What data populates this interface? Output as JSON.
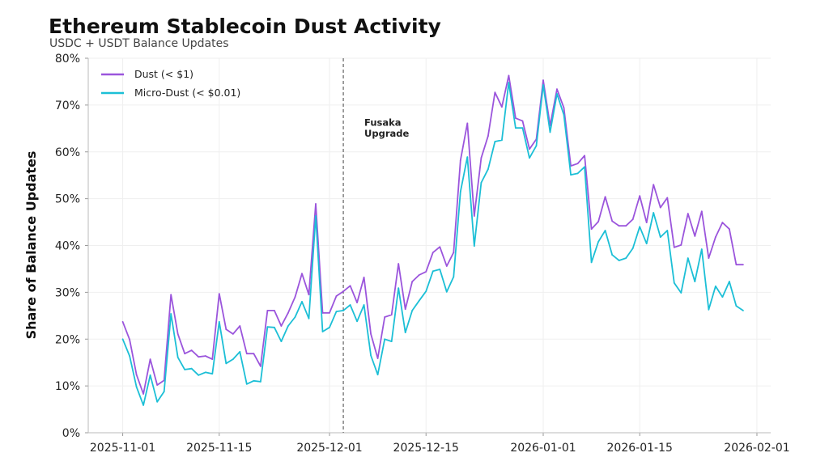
{
  "chart_data": {
    "type": "line",
    "title": "Ethereum Stablecoin Dust Activity",
    "subtitle": "USDC + USDT Balance Updates",
    "xlabel": "",
    "ylabel": "Share of Balance Updates",
    "x_start": "2025-11-01",
    "x_step": "1 day",
    "xlim": [
      "2025-10-27",
      "2026-02-03"
    ],
    "ylim": [
      0,
      80
    ],
    "x_ticks": [
      "2025-11-01",
      "2025-11-15",
      "2025-12-01",
      "2025-12-15",
      "2026-01-01",
      "2026-01-15",
      "2026-02-01"
    ],
    "y_ticks": [
      0,
      10,
      20,
      30,
      40,
      50,
      60,
      70,
      80
    ],
    "y_tick_labels": [
      "0%",
      "10%",
      "20%",
      "30%",
      "40%",
      "50%",
      "60%",
      "70%",
      "80%"
    ],
    "grid": true,
    "legend_position": "top-left",
    "annotation": {
      "date": "2025-12-03",
      "label_line1": "Fusaka",
      "label_line2": "Upgrade",
      "style": "dashed vertical line"
    },
    "series": [
      {
        "name": "Dust (< $1)",
        "color": "#9b55dc",
        "values": [
          23.7,
          19.9,
          12.4,
          8.3,
          15.7,
          10.2,
          11.2,
          29.5,
          21.1,
          16.9,
          17.6,
          16.2,
          16.4,
          15.7,
          29.7,
          22.1,
          21.1,
          22.8,
          16.9,
          16.9,
          14.2,
          26.1,
          26.1,
          22.8,
          25.6,
          29.0,
          34.0,
          29.5,
          48.9,
          25.6,
          25.6,
          29.2,
          30.2,
          31.4,
          27.8,
          33.2,
          21.1,
          15.9,
          24.7,
          25.2,
          36.1,
          26.4,
          32.3,
          33.7,
          34.4,
          38.5,
          39.7,
          35.6,
          38.5,
          58.2,
          66.1,
          46.3,
          58.7,
          63.4,
          72.7,
          69.6,
          76.3,
          67.2,
          66.6,
          60.6,
          62.7,
          75.3,
          65.6,
          73.4,
          69.4,
          57.0,
          57.5,
          59.2,
          43.5,
          45.1,
          50.4,
          45.2,
          44.2,
          44.2,
          45.6,
          50.6,
          44.9,
          53.0,
          48.1,
          50.2,
          39.6,
          40.1,
          46.8,
          42.0,
          47.3,
          37.3,
          41.8,
          44.9,
          43.5,
          35.9,
          35.9
        ]
      },
      {
        "name": "Micro-Dust (< $0.01)",
        "color": "#1cbfd6",
        "values": [
          20.0,
          16.4,
          9.8,
          5.9,
          12.3,
          6.6,
          8.8,
          25.4,
          16.1,
          13.5,
          13.7,
          12.3,
          12.9,
          12.6,
          23.7,
          14.8,
          15.7,
          17.3,
          10.4,
          11.1,
          10.9,
          22.6,
          22.5,
          19.5,
          22.8,
          24.7,
          28.0,
          24.4,
          46.3,
          21.6,
          22.5,
          25.9,
          26.1,
          27.3,
          23.8,
          27.3,
          16.5,
          12.4,
          20.0,
          19.5,
          30.9,
          21.4,
          26.1,
          28.2,
          30.2,
          34.5,
          34.9,
          30.1,
          33.3,
          51.5,
          58.9,
          39.9,
          53.4,
          56.3,
          62.2,
          62.5,
          74.8,
          65.1,
          65.1,
          58.7,
          61.3,
          74.3,
          64.2,
          72.4,
          67.9,
          55.1,
          55.4,
          56.8,
          36.4,
          40.8,
          43.2,
          38.0,
          36.8,
          37.3,
          39.4,
          44.0,
          40.4,
          47.0,
          41.8,
          43.2,
          32.0,
          29.9,
          37.3,
          32.3,
          39.2,
          26.3,
          31.3,
          29.0,
          32.3,
          27.1,
          26.1
        ]
      }
    ]
  }
}
